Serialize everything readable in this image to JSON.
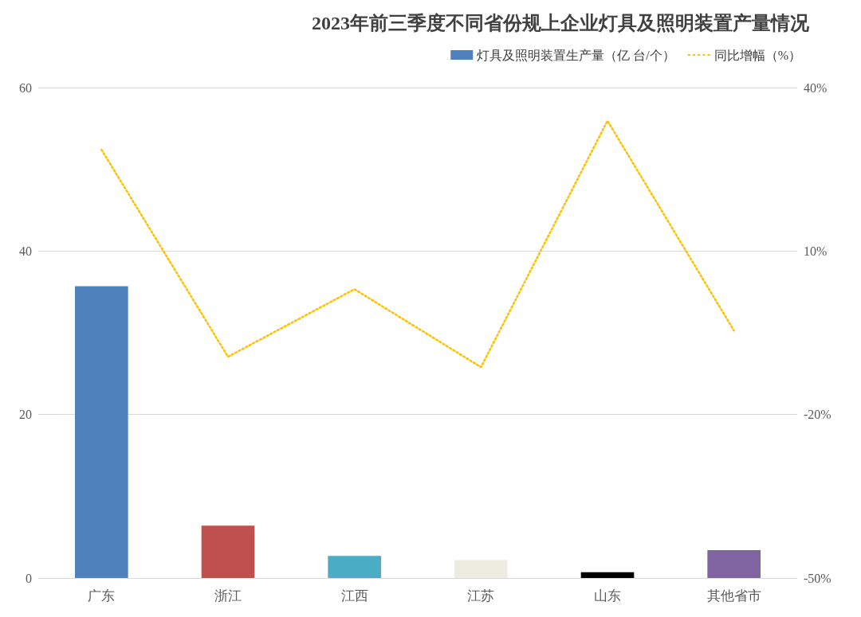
{
  "chart_data": {
    "type": "bar",
    "title": "2023年前三季度不同省份规上企业灯具及照明装置产量情况",
    "categories": [
      "广东",
      "浙江",
      "江西",
      "江苏",
      "山东",
      "其他省市"
    ],
    "series": [
      {
        "name": "灯具及照明装置生产量（亿 台/个）",
        "color": "#4f81bd",
        "colors": [
          "#4f81bd",
          "#c0504d",
          "#4bacc6",
          "#eeece1",
          "#000000",
          "#8064a2"
        ],
        "values": [
          35.7,
          6.4,
          2.7,
          2.2,
          0.7,
          3.4
        ]
      },
      {
        "name": "同比增幅（%）",
        "type": "line",
        "axis": "y2",
        "color": "#ffc000",
        "line_style": "dotted",
        "marker": "none",
        "values": [
          28.6,
          -9.4,
          3.0,
          -11.3,
          33.9,
          -4.6
        ]
      }
    ],
    "ylim": [
      0,
      60
    ],
    "yticks": [
      0,
      20,
      40,
      60
    ],
    "y2lim": [
      -50,
      40
    ],
    "y2ticks": [
      {
        "value": -50,
        "label": "-50%"
      },
      {
        "value": -20,
        "label": "-20%"
      },
      {
        "value": 10,
        "label": "10%"
      },
      {
        "value": 40,
        "label": "40%"
      }
    ],
    "grid": "y",
    "legend": "top right"
  }
}
